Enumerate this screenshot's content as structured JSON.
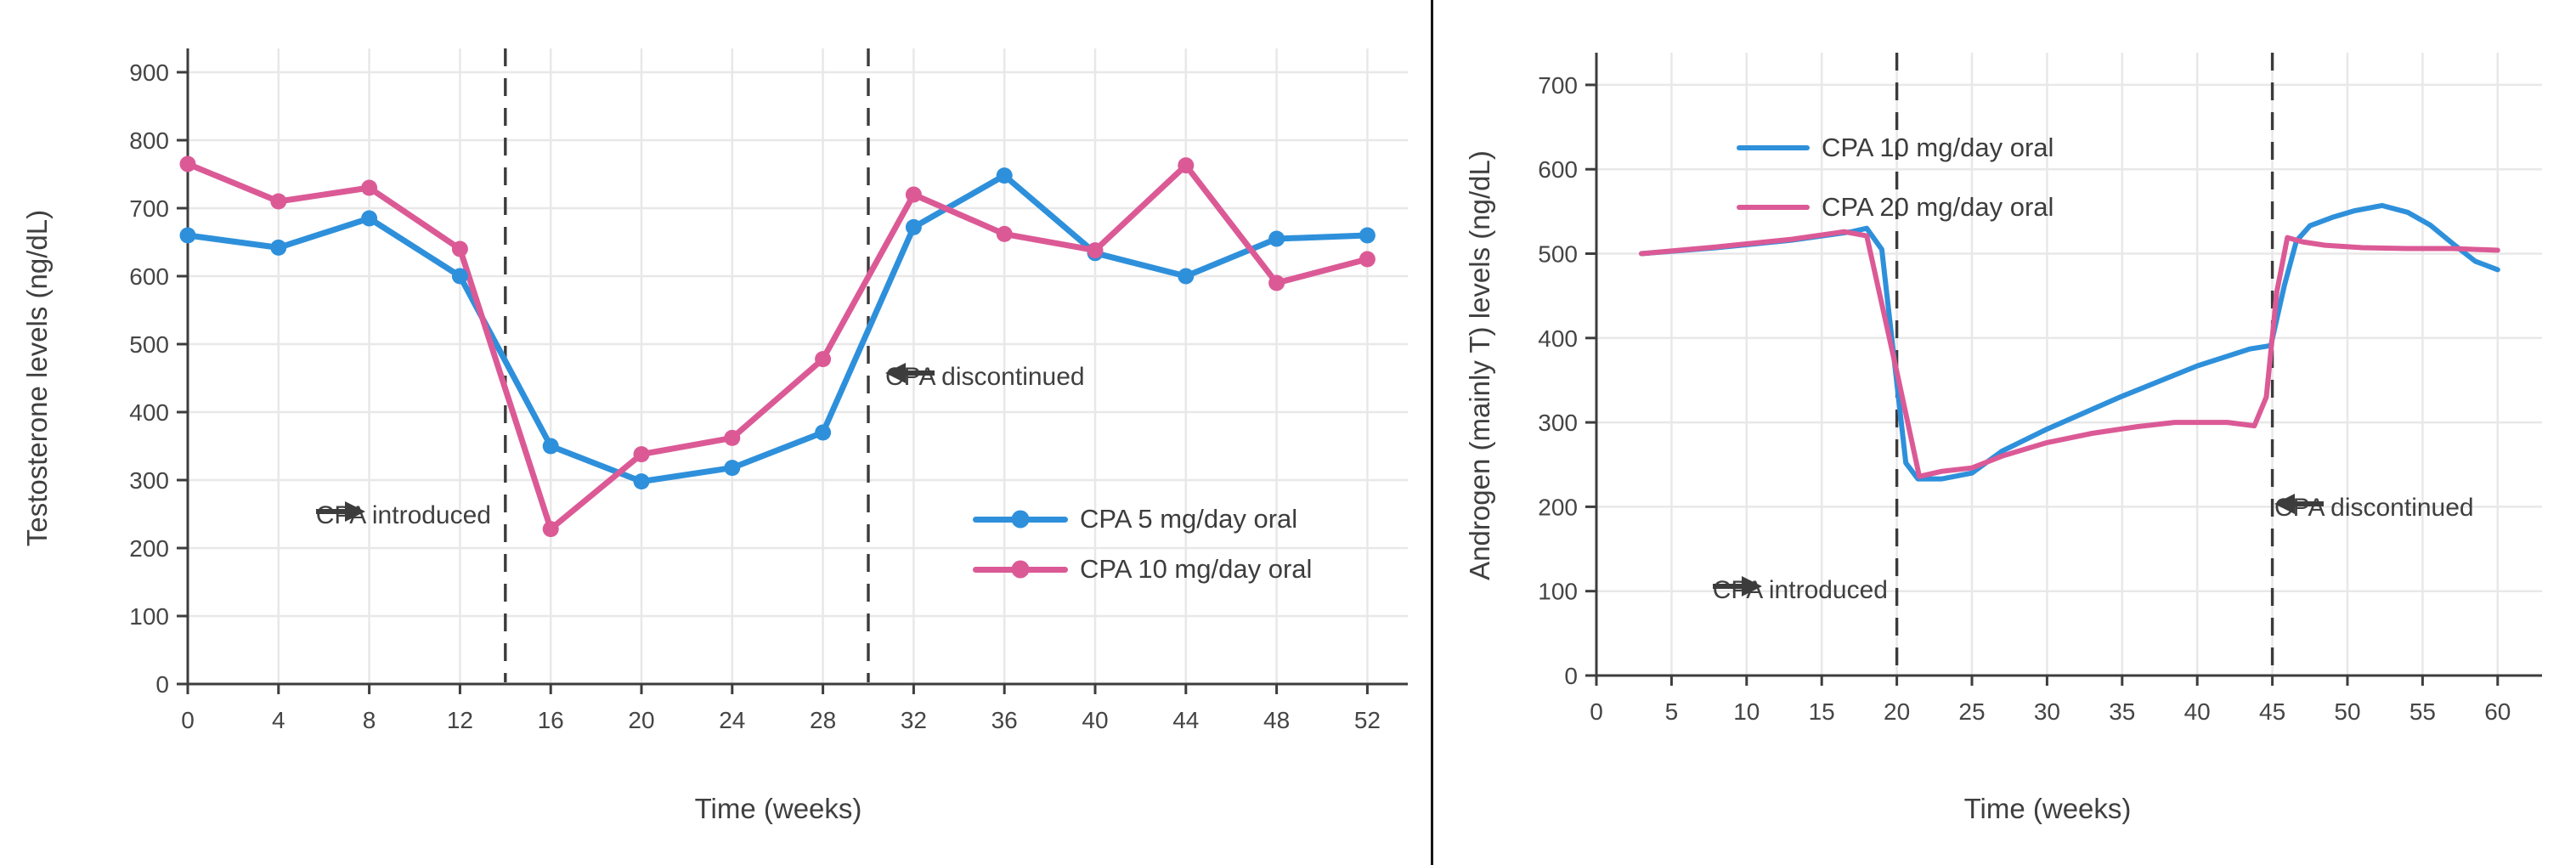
{
  "page": {
    "background": "#ffffff",
    "divider_color": "#161616"
  },
  "chart_data": [
    {
      "type": "line",
      "panel": "left",
      "title": "",
      "xlabel": "Time (weeks)",
      "ylabel": "Testosterone levels (ng/dL)",
      "xlim": [
        0,
        54
      ],
      "ylim": [
        0,
        940
      ],
      "x_ticks": [
        0,
        4,
        8,
        12,
        16,
        20,
        24,
        28,
        32,
        36,
        40,
        44,
        48,
        52
      ],
      "y_ticks": [
        0,
        100,
        200,
        300,
        400,
        500,
        600,
        700,
        800,
        900
      ],
      "grid": true,
      "markers": true,
      "legend_position": "inside lower-right",
      "series": [
        {
          "name": "CPA 5 mg/day oral",
          "color": "#2e90db",
          "x": [
            0,
            4,
            8,
            12,
            16,
            20,
            24,
            28,
            32,
            36,
            40,
            44,
            48,
            52
          ],
          "y": [
            660,
            642,
            685,
            600,
            350,
            298,
            318,
            370,
            672,
            748,
            634,
            600,
            655,
            660
          ]
        },
        {
          "name": "CPA 10 mg/day oral",
          "color": "#db5a96",
          "x": [
            0,
            4,
            8,
            12,
            16,
            20,
            24,
            28,
            32,
            36,
            40,
            44,
            48,
            52
          ],
          "y": [
            765,
            710,
            730,
            640,
            228,
            338,
            362,
            478,
            720,
            662,
            638,
            763,
            590,
            625
          ]
        }
      ],
      "vlines": [
        {
          "x": 14,
          "label": "CPA introduced",
          "label_level": 248,
          "arrow": "right"
        },
        {
          "x": 30,
          "label": "CPA discontinued",
          "label_level": 451,
          "arrow": "left"
        }
      ]
    },
    {
      "type": "line",
      "panel": "right",
      "title": "",
      "xlabel": "Time (weeks)",
      "ylabel": "Androgen (mainly T) levels (ng/dL)",
      "xlim": [
        0,
        62
      ],
      "ylim": [
        0,
        740
      ],
      "x_ticks": [
        0,
        5,
        10,
        15,
        20,
        25,
        30,
        35,
        40,
        45,
        50,
        55,
        60
      ],
      "y_ticks": [
        0,
        100,
        200,
        300,
        400,
        500,
        600,
        700
      ],
      "grid": true,
      "markers": false,
      "legend_position": "inside upper-left",
      "series": [
        {
          "name": "CPA 10 mg/day oral",
          "color": "#2e90db",
          "x": [
            3,
            8,
            13,
            17,
            18,
            19,
            20.6,
            21.4,
            23,
            25,
            27,
            30,
            35,
            40,
            43.5,
            44.9,
            45.8,
            46.6,
            47.5,
            49,
            50.5,
            52.3,
            54,
            55.5,
            57,
            58.5,
            60
          ],
          "y": [
            500,
            507,
            516,
            526,
            530,
            505,
            252,
            233,
            233,
            240,
            266,
            292,
            331,
            367,
            387,
            391,
            462,
            515,
            533,
            543,
            551,
            557,
            549,
            534,
            512,
            491,
            481
          ]
        },
        {
          "name": "CPA 20 mg/day oral",
          "color": "#db5a96",
          "x": [
            3,
            8,
            13,
            16.5,
            18,
            20,
            21.5,
            23,
            25,
            27,
            30,
            33,
            36,
            38.5,
            42,
            43.8,
            44.6,
            45.3,
            46,
            47,
            48.5,
            51,
            54,
            57,
            60
          ],
          "y": [
            500,
            508,
            517,
            526,
            521,
            360,
            236,
            242,
            246,
            260,
            276,
            287,
            295,
            300,
            300,
            296,
            330,
            455,
            519,
            514,
            510,
            507,
            506,
            506,
            504
          ]
        }
      ],
      "vlines": [
        {
          "x": 20,
          "label": "CPA introduced",
          "label_level": 100,
          "arrow": "right"
        },
        {
          "x": 45,
          "label": "CPA discontinued",
          "label_level": 198,
          "arrow": "left"
        }
      ]
    }
  ]
}
